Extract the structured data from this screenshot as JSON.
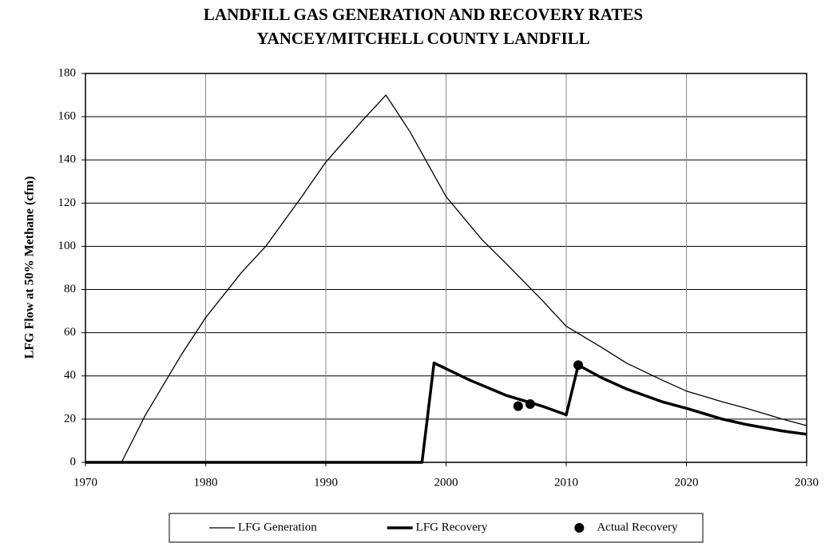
{
  "chart_data": {
    "type": "line",
    "title": "LANDFILL GAS GENERATION AND RECOVERY RATES",
    "subtitle": "YANCEY/MITCHELL COUNTY LANDFILL",
    "y_label": "LFG Flow at 50% Methane (cfm)",
    "xlim": [
      1970,
      2030
    ],
    "xticks": [
      1970,
      1980,
      1990,
      2000,
      2010,
      2020,
      2030
    ],
    "ylim": [
      0,
      180
    ],
    "yticks": [
      0,
      20,
      40,
      60,
      80,
      100,
      120,
      140,
      160,
      180
    ],
    "grid": true,
    "legend": "bottom",
    "series": [
      {
        "name": "LFG Generation",
        "color": "#000000",
        "style": "line",
        "width": 1.3,
        "x": [
          1973,
          1975,
          1978,
          1980,
          1983,
          1985,
          1988,
          1990,
          1993,
          1995,
          1997,
          2000,
          2003,
          2005,
          2008,
          2010,
          2013,
          2015,
          2018,
          2020,
          2023,
          2025,
          2028,
          2030
        ],
        "values": [
          0,
          22,
          50,
          67,
          88,
          100,
          123,
          139,
          158,
          170,
          153,
          123,
          103,
          92,
          75,
          63,
          53,
          46,
          38,
          33,
          28,
          25,
          20,
          17
        ]
      },
      {
        "name": "LFG Recovery",
        "color": "#000000",
        "style": "line",
        "width": 3.5,
        "x": [
          1970,
          1998,
          1999,
          2002,
          2005,
          2008,
          2010,
          2011,
          2013,
          2015,
          2018,
          2020,
          2023,
          2025,
          2028,
          2030
        ],
        "values": [
          0,
          0,
          46,
          38,
          31,
          26,
          22,
          45,
          39,
          34,
          28,
          25,
          20,
          17.5,
          14.5,
          13
        ]
      },
      {
        "name": "Actual Recovery",
        "color": "#000000",
        "style": "points",
        "x": [
          2006,
          2007,
          2011
        ],
        "values": [
          26,
          27,
          45
        ]
      }
    ]
  }
}
